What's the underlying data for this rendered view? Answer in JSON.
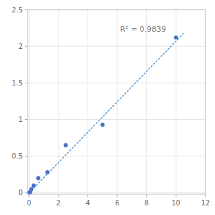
{
  "chart_data": {
    "type": "scatter",
    "series": [
      {
        "type": "scatter",
        "marker": "circle",
        "color": "#4472C4",
        "x": [
          0.0,
          0.078,
          0.156,
          0.313,
          0.625,
          1.25,
          2.5,
          5.0,
          10.0
        ],
        "values": [
          0.0,
          0.01,
          0.05,
          0.1,
          0.2,
          0.28,
          0.65,
          0.93,
          2.12
        ]
      },
      {
        "type": "line",
        "line_style": "dotted",
        "color": "#5B9BD5",
        "x": [
          0.0,
          10.5
        ],
        "values": [
          0.0,
          2.175
        ]
      }
    ],
    "annotations": [
      {
        "text": "R² = 0.9839",
        "x": 6.2,
        "y": 2.17
      }
    ],
    "xlim": [
      -0.1,
      12
    ],
    "ylim": [
      -0.02,
      2.5
    ],
    "xticks": [
      0,
      2,
      4,
      6,
      8,
      10,
      12
    ],
    "yticks": [
      0,
      0.5,
      1,
      1.5,
      2,
      2.5
    ],
    "grid": true
  }
}
